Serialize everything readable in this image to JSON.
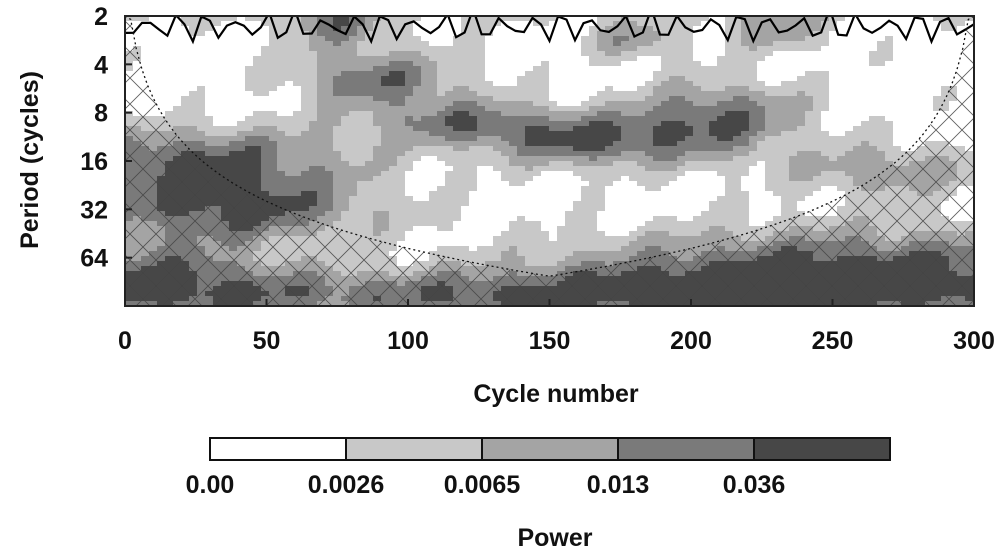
{
  "chart_data": {
    "type": "heatmap",
    "title": "",
    "xlabel": "Cycle number",
    "ylabel": "Period (cycles)",
    "xlim": [
      0,
      300
    ],
    "ylim": [
      2,
      128
    ],
    "y_scale": "log2",
    "y_reversed": true,
    "x_ticks": [
      "0",
      "50",
      "100",
      "150",
      "200",
      "250",
      "300"
    ],
    "y_ticks": [
      "2",
      "4",
      "8",
      "16",
      "32",
      "64"
    ],
    "colorbar": {
      "label": "Power",
      "levels": [
        "0.00",
        "0.0026",
        "0.0065",
        "0.013",
        "0.036"
      ],
      "colors": [
        "#ffffff",
        "#c8c8c8",
        "#a4a4a4",
        "#7a7a7a",
        "#474747"
      ]
    },
    "cone_of_influence": "hatched",
    "significance_contour": "black",
    "legend": "none",
    "grid": false
  }
}
